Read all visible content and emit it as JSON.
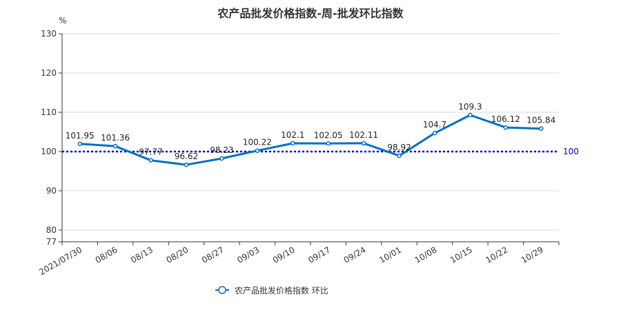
{
  "chart_data": {
    "type": "line",
    "title": "农产品批发价格指数-周-批发环比指数",
    "y_unit": "%",
    "categories": [
      "2021/07/30",
      "08/06",
      "08/13",
      "08/20",
      "08/27",
      "09/03",
      "09/10",
      "09/17",
      "09/24",
      "10/01",
      "10/08",
      "10/15",
      "10/22",
      "10/29"
    ],
    "series": [
      {
        "name": "农产品批发价格指数  环比",
        "values": [
          101.95,
          101.36,
          97.77,
          96.62,
          98.23,
          100.22,
          102.1,
          102.05,
          102.11,
          98.92,
          104.7,
          109.3,
          106.12,
          105.84
        ],
        "value_labels": [
          "101.95",
          "101.36",
          "97.77",
          "96.62",
          "98.23",
          "100.22",
          "102.1",
          "102.05",
          "102.11",
          "98.92",
          "104.7",
          "109.3",
          "106.12",
          "105.84"
        ],
        "color": "#0070c0"
      }
    ],
    "ylim": [
      77,
      130
    ],
    "yticks": [
      "130",
      "120",
      "110",
      "100",
      "90",
      "80",
      "77"
    ],
    "reference_line": {
      "value": 100,
      "label": "100",
      "color": "#0000cc",
      "style": "dotted"
    },
    "grid": true,
    "legend_position": "bottom-center"
  }
}
